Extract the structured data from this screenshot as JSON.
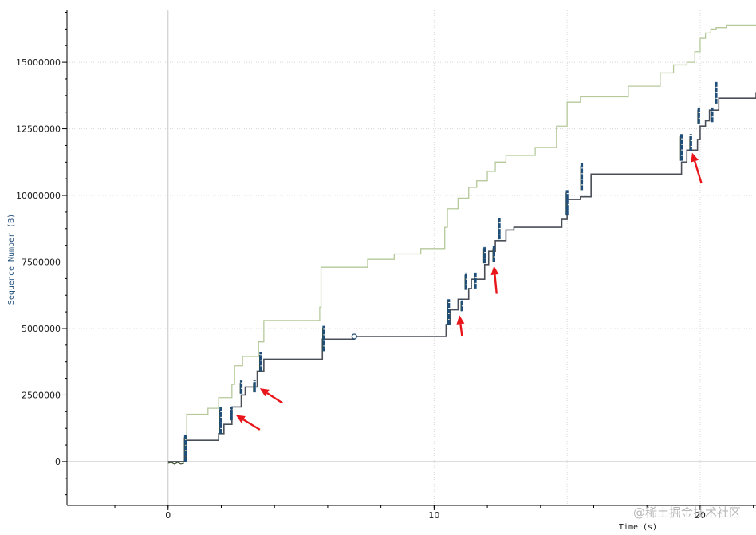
{
  "chart_data": {
    "type": "line",
    "title": "",
    "xlabel": "Time (s)",
    "ylabel": "Sequence Number (B)",
    "xlim": [
      -3.8,
      22.1
    ],
    "ylim": [
      -1650000,
      16950000
    ],
    "x_ticks": [
      0,
      10,
      20
    ],
    "x_tick_labels": [
      "0",
      "10",
      "20"
    ],
    "y_ticks": [
      0,
      2500000,
      5000000,
      7500000,
      10000000,
      12500000,
      15000000
    ],
    "y_tick_labels": [
      "0",
      "2500000",
      "5000000",
      "7500000",
      "10000000",
      "12500000",
      "15000000"
    ],
    "grid": true,
    "legend": "none",
    "colors": {
      "receive_window": "#b5c99a",
      "ack_line": "#4a4f57",
      "data_segments": "#1f4e79",
      "retransmissions": "#3d4e2f",
      "baseline": "#c8c8c8",
      "grid": "#d8d8d8",
      "annotation_arrow": "#e8161b",
      "axis": "#000000"
    },
    "series": [
      {
        "kind": "receive-window-step",
        "x": [
          0,
          0.65,
          0.7,
          1.5,
          1.9,
          2.4,
          2.5,
          2.8,
          3.4,
          3.6,
          5.7,
          5.75,
          7.5,
          8.5,
          9.5,
          10.4,
          10.5,
          10.9,
          11.3,
          11.6,
          12.0,
          12.3,
          12.7,
          13.8,
          14.6,
          15.0,
          15.5,
          17.3,
          18.5,
          19.0,
          19.5,
          19.8,
          20.0,
          20.2,
          20.4,
          20.6,
          21.0,
          22.1
        ],
        "y": [
          0,
          800000,
          1780000,
          2000000,
          2400000,
          2900000,
          3600000,
          3950000,
          4500000,
          5300000,
          5800000,
          7300000,
          7600000,
          7800000,
          8000000,
          8800000,
          9500000,
          9900000,
          10300000,
          10550000,
          10900000,
          11250000,
          11500000,
          11800000,
          12600000,
          13500000,
          13700000,
          14100000,
          14600000,
          14900000,
          15000000,
          15400000,
          15900000,
          16100000,
          16250000,
          16300000,
          16400000,
          16400000
        ]
      },
      {
        "kind": "ack-step",
        "x": [
          0,
          0.65,
          0.7,
          1.9,
          2.1,
          2.4,
          2.75,
          2.9,
          3.35,
          3.6,
          5.8,
          7.0,
          10.45,
          10.6,
          10.9,
          11.3,
          11.4,
          11.9,
          12.05,
          12.3,
          12.7,
          13.0,
          14.8,
          15.0,
          15.5,
          15.9,
          19.3,
          19.5,
          19.9,
          20.0,
          20.2,
          20.35,
          20.7,
          22.1
        ],
        "y": [
          0,
          200000,
          800000,
          1050000,
          1400000,
          2050000,
          2500000,
          2800000,
          3400000,
          3850000,
          4600000,
          4700000,
          5150000,
          5700000,
          6100000,
          6500000,
          6850000,
          7400000,
          7900000,
          8300000,
          8700000,
          8800000,
          9100000,
          9850000,
          9950000,
          10800000,
          11250000,
          11700000,
          12100000,
          12600000,
          12800000,
          13200000,
          13650000,
          13850000
        ]
      },
      {
        "kind": "data-bursts",
        "bursts": [
          {
            "x": 0.65,
            "y0": 0,
            "y1": 1000000
          },
          {
            "x": 1.98,
            "y0": 1050000,
            "y1": 2050000
          },
          {
            "x": 2.38,
            "y0": 1550000,
            "y1": 2050000
          },
          {
            "x": 2.75,
            "y0": 2550000,
            "y1": 3050000
          },
          {
            "x": 3.25,
            "y0": 2600000,
            "y1": 3050000
          },
          {
            "x": 3.48,
            "y0": 3400000,
            "y1": 4100000
          },
          {
            "x": 5.85,
            "y0": 4150000,
            "y1": 5100000
          },
          {
            "x": 10.55,
            "y0": 5150000,
            "y1": 6100000
          },
          {
            "x": 11.05,
            "y0": 5650000,
            "y1": 6100000
          },
          {
            "x": 11.2,
            "y0": 6450000,
            "y1": 7100000
          },
          {
            "x": 11.55,
            "y0": 6500000,
            "y1": 7100000
          },
          {
            "x": 11.9,
            "y0": 7450000,
            "y1": 8100000
          },
          {
            "x": 12.25,
            "y0": 7500000,
            "y1": 8100000
          },
          {
            "x": 12.45,
            "y0": 8350000,
            "y1": 9150000
          },
          {
            "x": 15.0,
            "y0": 9250000,
            "y1": 10200000
          },
          {
            "x": 15.55,
            "y0": 10200000,
            "y1": 11200000
          },
          {
            "x": 19.3,
            "y0": 11300000,
            "y1": 12300000
          },
          {
            "x": 19.65,
            "y0": 11650000,
            "y1": 12300000
          },
          {
            "x": 19.95,
            "y0": 12700000,
            "y1": 13300000
          },
          {
            "x": 20.45,
            "y0": 12750000,
            "y1": 13300000
          },
          {
            "x": 20.6,
            "y0": 13450000,
            "y1": 14300000
          }
        ]
      }
    ],
    "markers": [
      {
        "kind": "circle",
        "x": 7.0,
        "y": 4700000
      }
    ],
    "annotations": [
      {
        "kind": "arrow",
        "from": [
          3.45,
          1200000
        ],
        "to": [
          2.55,
          1750000
        ]
      },
      {
        "kind": "arrow",
        "from": [
          4.3,
          2200000
        ],
        "to": [
          3.45,
          2750000
        ]
      },
      {
        "kind": "arrow",
        "from": [
          11.05,
          4700000
        ],
        "to": [
          10.95,
          5500000
        ]
      },
      {
        "kind": "arrow",
        "from": [
          12.35,
          6300000
        ],
        "to": [
          12.25,
          7350000
        ]
      },
      {
        "kind": "arrow",
        "from": [
          20.05,
          10450000
        ],
        "to": [
          19.7,
          11600000
        ]
      }
    ]
  },
  "watermark": "@稀土掘金技术社区"
}
